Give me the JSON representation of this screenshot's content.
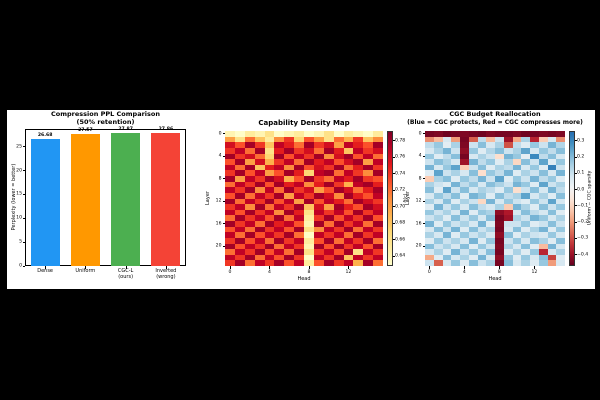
{
  "chart_data": [
    {
      "type": "bar",
      "title": "Compression PPL Comparison",
      "subtitle": "(50% retention)",
      "ylabel": "Perplexity (lower = better)",
      "categories": [
        "Dense",
        "Uniform",
        "CGC-L (ours)",
        "Inverted (wrong)"
      ],
      "category_lines": [
        [
          "Dense"
        ],
        [
          "Uniform"
        ],
        [
          "CGC-L",
          "(ours)"
        ],
        [
          "Inverted",
          "(wrong)"
        ]
      ],
      "values": [
        26.68,
        27.57,
        27.87,
        27.86
      ],
      "bar_labels": [
        "26.68",
        "27.57",
        "27.87",
        "27.86"
      ],
      "colors": [
        "#2196F3",
        "#FF9800",
        "#4CAF50",
        "#F44336"
      ],
      "yticks": [
        0,
        5,
        10,
        15,
        20,
        25
      ],
      "ylim": [
        0,
        28.7
      ],
      "grid": false
    },
    {
      "type": "heatmap",
      "title": "Capability Density Map",
      "xlabel": "Head",
      "ylabel": "Layer",
      "colormap": "YlOrRd",
      "n_rows": 24,
      "n_cols": 16,
      "xticks": [
        0,
        4,
        8,
        12
      ],
      "yticks": [
        0,
        4,
        8,
        12,
        16,
        20
      ],
      "colorbar_label": "δ(c)",
      "colorbar_ticks": [
        0.78,
        0.76,
        0.74,
        0.72,
        0.7,
        0.68,
        0.66,
        0.64
      ],
      "vmin": 0.628,
      "vmax": 0.792,
      "values": [
        [
          0.64,
          0.63,
          0.65,
          0.64,
          0.66,
          0.63,
          0.64,
          0.65,
          0.63,
          0.64,
          0.66,
          0.63,
          0.65,
          0.64,
          0.63,
          0.65
        ],
        [
          0.7,
          0.66,
          0.72,
          0.68,
          0.65,
          0.71,
          0.74,
          0.67,
          0.73,
          0.7,
          0.66,
          0.72,
          0.69,
          0.74,
          0.68,
          0.71
        ],
        [
          0.76,
          0.73,
          0.78,
          0.74,
          0.68,
          0.77,
          0.75,
          0.72,
          0.78,
          0.74,
          0.76,
          0.7,
          0.77,
          0.75,
          0.73,
          0.78
        ],
        [
          0.74,
          0.77,
          0.72,
          0.78,
          0.66,
          0.75,
          0.78,
          0.74,
          0.76,
          0.72,
          0.78,
          0.75,
          0.68,
          0.77,
          0.74,
          0.76
        ],
        [
          0.78,
          0.74,
          0.76,
          0.72,
          0.67,
          0.78,
          0.73,
          0.77,
          0.74,
          0.78,
          0.71,
          0.76,
          0.78,
          0.73,
          0.77,
          0.72
        ],
        [
          0.73,
          0.78,
          0.7,
          0.76,
          0.69,
          0.74,
          0.77,
          0.72,
          0.78,
          0.75,
          0.77,
          0.73,
          0.76,
          0.78,
          0.7,
          0.77
        ],
        [
          0.77,
          0.72,
          0.78,
          0.68,
          0.75,
          0.77,
          0.71,
          0.78,
          0.73,
          0.76,
          0.74,
          0.78,
          0.72,
          0.75,
          0.78,
          0.74
        ],
        [
          0.74,
          0.78,
          0.73,
          0.77,
          0.7,
          0.73,
          0.78,
          0.75,
          0.67,
          0.77,
          0.78,
          0.72,
          0.77,
          0.74,
          0.71,
          0.78
        ],
        [
          0.78,
          0.7,
          0.77,
          0.74,
          0.78,
          0.76,
          0.69,
          0.73,
          0.78,
          0.74,
          0.72,
          0.77,
          0.75,
          0.78,
          0.74,
          0.73
        ],
        [
          0.72,
          0.77,
          0.74,
          0.78,
          0.73,
          0.78,
          0.75,
          0.77,
          0.71,
          0.75,
          0.78,
          0.74,
          0.69,
          0.77,
          0.78,
          0.75
        ],
        [
          0.77,
          0.74,
          0.78,
          0.71,
          0.77,
          0.72,
          0.78,
          0.74,
          0.76,
          0.7,
          0.73,
          0.78,
          0.76,
          0.72,
          0.75,
          0.78
        ],
        [
          0.73,
          0.78,
          0.72,
          0.77,
          0.74,
          0.78,
          0.7,
          0.77,
          0.74,
          0.78,
          0.76,
          0.71,
          0.78,
          0.75,
          0.73,
          0.77
        ],
        [
          0.78,
          0.72,
          0.77,
          0.74,
          0.78,
          0.73,
          0.77,
          0.7,
          0.78,
          0.73,
          0.77,
          0.75,
          0.72,
          0.78,
          0.76,
          0.74
        ],
        [
          0.74,
          0.77,
          0.71,
          0.78,
          0.72,
          0.77,
          0.74,
          0.78,
          0.68,
          0.76,
          0.7,
          0.78,
          0.75,
          0.73,
          0.78,
          0.76
        ],
        [
          0.77,
          0.73,
          0.78,
          0.74,
          0.77,
          0.71,
          0.78,
          0.75,
          0.66,
          0.77,
          0.74,
          0.77,
          0.73,
          0.78,
          0.74,
          0.77
        ],
        [
          0.72,
          0.78,
          0.74,
          0.77,
          0.73,
          0.78,
          0.72,
          0.77,
          0.65,
          0.74,
          0.78,
          0.73,
          0.77,
          0.74,
          0.78,
          0.73
        ],
        [
          0.78,
          0.74,
          0.77,
          0.72,
          0.78,
          0.75,
          0.77,
          0.73,
          0.64,
          0.78,
          0.72,
          0.78,
          0.74,
          0.77,
          0.72,
          0.78
        ],
        [
          0.73,
          0.77,
          0.72,
          0.78,
          0.74,
          0.77,
          0.73,
          0.78,
          0.66,
          0.71,
          0.77,
          0.74,
          0.78,
          0.72,
          0.77,
          0.74
        ],
        [
          0.77,
          0.72,
          0.78,
          0.73,
          0.77,
          0.74,
          0.78,
          0.72,
          0.63,
          0.77,
          0.74,
          0.77,
          0.72,
          0.78,
          0.74,
          0.77
        ],
        [
          0.74,
          0.78,
          0.73,
          0.77,
          0.72,
          0.78,
          0.74,
          0.77,
          0.65,
          0.73,
          0.78,
          0.72,
          0.77,
          0.74,
          0.78,
          0.72
        ],
        [
          0.78,
          0.73,
          0.77,
          0.74,
          0.78,
          0.72,
          0.77,
          0.74,
          0.64,
          0.78,
          0.73,
          0.78,
          0.74,
          0.77,
          0.73,
          0.78
        ],
        [
          0.72,
          0.77,
          0.74,
          0.78,
          0.73,
          0.77,
          0.72,
          0.78,
          0.66,
          0.74,
          0.77,
          0.73,
          0.78,
          0.66,
          0.77,
          0.74
        ],
        [
          0.77,
          0.74,
          0.78,
          0.72,
          0.77,
          0.73,
          0.78,
          0.74,
          0.63,
          0.77,
          0.74,
          0.78,
          0.68,
          0.77,
          0.74,
          0.77
        ],
        [
          0.74,
          0.78,
          0.72,
          0.77,
          0.74,
          0.78,
          0.73,
          0.77,
          0.65,
          0.73,
          0.78,
          0.74,
          0.77,
          0.69,
          0.78,
          0.72
        ]
      ]
    },
    {
      "type": "heatmap",
      "title": "CGC Budget Reallocation",
      "subtitle": "(Blue = CGC protects, Red = CGC compresses more)",
      "xlabel": "Head",
      "ylabel": "Layer",
      "colormap": "RdBu",
      "n_rows": 24,
      "n_cols": 16,
      "xticks": [
        0,
        4,
        8,
        12
      ],
      "yticks": [
        0,
        4,
        8,
        12,
        16,
        20
      ],
      "colorbar_label": "Uniform − CGC sparsity",
      "colorbar_ticks": [
        0.3,
        0.2,
        0.1,
        0.0,
        -0.1,
        -0.2,
        -0.3,
        -0.4
      ],
      "vmin": -0.47,
      "vmax": 0.36,
      "center": 0,
      "absmax": 0.47,
      "values": [
        [
          -0.45,
          -0.44,
          -0.46,
          -0.45,
          -0.44,
          -0.45,
          -0.46,
          -0.44,
          -0.45,
          -0.45,
          -0.44,
          -0.46,
          -0.45,
          -0.44,
          -0.45,
          -0.44
        ],
        [
          -0.22,
          -0.15,
          0.08,
          -0.2,
          -0.45,
          -0.28,
          0.12,
          -0.15,
          0.1,
          -0.4,
          -0.18,
          0.15,
          -0.36,
          -0.12,
          0.08,
          -0.22
        ],
        [
          0.12,
          0.18,
          0.05,
          0.15,
          -0.44,
          0.1,
          0.2,
          0.08,
          0.15,
          -0.3,
          0.12,
          0.06,
          0.18,
          0.1,
          0.22,
          0.14
        ],
        [
          0.08,
          0.15,
          0.22,
          0.1,
          -0.42,
          0.18,
          0.06,
          0.14,
          0.2,
          0.1,
          0.15,
          0.25,
          0.08,
          0.18,
          0.12,
          0.2
        ],
        [
          0.18,
          0.06,
          0.12,
          0.2,
          -0.45,
          0.08,
          0.15,
          0.1,
          -0.08,
          0.22,
          0.18,
          0.05,
          0.3,
          0.12,
          0.2,
          0.08
        ],
        [
          0.1,
          0.2,
          0.15,
          0.08,
          -0.4,
          0.22,
          0.12,
          0.18,
          0.06,
          0.15,
          -0.1,
          0.2,
          0.1,
          0.25,
          0.06,
          0.18
        ],
        [
          0.22,
          0.08,
          0.18,
          0.25,
          -0.12,
          0.1,
          0.2,
          0.06,
          0.15,
          0.12,
          0.22,
          0.08,
          0.18,
          0.06,
          0.32,
          0.1
        ],
        [
          0.06,
          0.25,
          0.1,
          0.15,
          0.08,
          0.2,
          -0.08,
          0.18,
          0.12,
          0.22,
          0.06,
          0.15,
          0.1,
          0.2,
          0.08,
          0.22
        ],
        [
          -0.12,
          0.15,
          0.2,
          0.06,
          0.18,
          0.12,
          0.22,
          0.1,
          0.25,
          0.06,
          0.18,
          0.1,
          0.22,
          0.12,
          0.18,
          0.06
        ],
        [
          0.15,
          0.1,
          0.06,
          0.22,
          0.12,
          0.18,
          0.08,
          0.2,
          0.15,
          0.1,
          0.22,
          0.18,
          0.06,
          0.25,
          0.1,
          0.15
        ],
        [
          0.2,
          0.06,
          0.25,
          0.1,
          0.2,
          0.08,
          0.15,
          0.12,
          0.06,
          0.18,
          -0.08,
          0.1,
          0.2,
          0.08,
          0.22,
          0.12
        ],
        [
          0.08,
          0.18,
          0.12,
          0.2,
          0.06,
          0.22,
          0.18,
          0.06,
          0.2,
          0.12,
          0.15,
          0.25,
          0.08,
          0.15,
          0.06,
          0.2
        ],
        [
          0.15,
          0.08,
          0.2,
          0.06,
          0.15,
          0.1,
          -0.1,
          0.22,
          0.08,
          0.18,
          0.1,
          0.06,
          0.18,
          0.1,
          0.25,
          0.08
        ],
        [
          0.06,
          0.22,
          0.1,
          0.18,
          0.08,
          0.2,
          0.12,
          0.08,
          0.15,
          -0.12,
          0.22,
          0.15,
          0.06,
          0.2,
          0.1,
          0.18
        ],
        [
          0.18,
          0.1,
          0.15,
          0.08,
          0.22,
          0.06,
          0.18,
          0.15,
          -0.42,
          -0.38,
          0.08,
          0.2,
          0.12,
          0.08,
          0.2,
          0.06
        ],
        [
          0.1,
          0.15,
          0.06,
          0.2,
          0.1,
          0.18,
          0.08,
          0.2,
          -0.45,
          -0.4,
          0.15,
          0.1,
          0.22,
          0.18,
          0.08,
          0.15
        ],
        [
          0.22,
          0.06,
          0.18,
          0.1,
          0.15,
          0.08,
          0.22,
          0.06,
          -0.44,
          0.1,
          0.1,
          0.18,
          0.06,
          0.1,
          0.2,
          0.1
        ],
        [
          0.08,
          0.2,
          0.1,
          0.22,
          0.06,
          0.2,
          0.1,
          0.15,
          -0.45,
          0.08,
          0.2,
          0.06,
          0.15,
          0.22,
          0.06,
          0.18
        ],
        [
          0.15,
          0.08,
          0.22,
          0.06,
          0.18,
          0.1,
          0.15,
          0.08,
          -0.42,
          0.2,
          0.06,
          0.15,
          0.1,
          0.08,
          0.18,
          0.08
        ],
        [
          0.06,
          0.18,
          0.1,
          0.15,
          0.08,
          0.22,
          0.06,
          0.18,
          -0.45,
          0.1,
          0.18,
          0.08,
          0.2,
          0.15,
          0.06,
          0.2
        ],
        [
          0.2,
          0.1,
          0.15,
          0.08,
          0.2,
          0.06,
          0.18,
          0.1,
          -0.44,
          0.15,
          0.08,
          0.2,
          0.06,
          -0.15,
          0.22,
          0.08
        ],
        [
          0.08,
          0.15,
          0.06,
          0.22,
          0.1,
          0.18,
          0.08,
          0.2,
          -0.45,
          0.06,
          0.15,
          0.06,
          0.18,
          -0.36,
          0.08,
          0.15
        ],
        [
          -0.18,
          0.06,
          0.2,
          0.08,
          0.15,
          0.06,
          0.22,
          0.08,
          -0.42,
          0.18,
          0.06,
          0.18,
          0.08,
          0.2,
          -0.32,
          0.06
        ],
        [
          0.1,
          -0.28,
          0.08,
          0.18,
          0.06,
          0.2,
          0.1,
          0.15,
          -0.45,
          0.2,
          0.08,
          0.15,
          0.06,
          0.18,
          -0.2,
          0.08
        ]
      ]
    }
  ],
  "style": {
    "figure_background": "#ffffff",
    "canvas_background": "#000000",
    "text_color": "#000000"
  }
}
